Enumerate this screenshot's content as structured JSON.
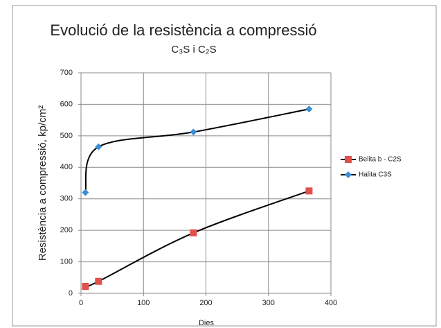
{
  "chart_data": {
    "type": "line",
    "title": "Evolució de la resistència a compressió",
    "subtitle": "C₃S i C₂S",
    "x_label": "Dies",
    "y_label": "Resistència a compressió, kp/cm²",
    "x": [
      7,
      28,
      180,
      365
    ],
    "series": [
      {
        "name": "Belita b - C2S",
        "color": "#e2504c",
        "marker": "square",
        "line_color": "#000000",
        "values": [
          22,
          38,
          192,
          325
        ]
      },
      {
        "name": "Halita C3S",
        "color": "#3b8fd8",
        "marker": "diamond",
        "line_color": "#000000",
        "values": [
          320,
          465,
          512,
          585
        ]
      }
    ],
    "xlim": [
      0,
      400
    ],
    "xticks": [
      0,
      100,
      200,
      300,
      400
    ],
    "ylim": [
      0,
      700
    ],
    "yticks": [
      0,
      100,
      200,
      300,
      400,
      500,
      600,
      700
    ],
    "grid": true,
    "smooth": true,
    "legend": "right"
  }
}
